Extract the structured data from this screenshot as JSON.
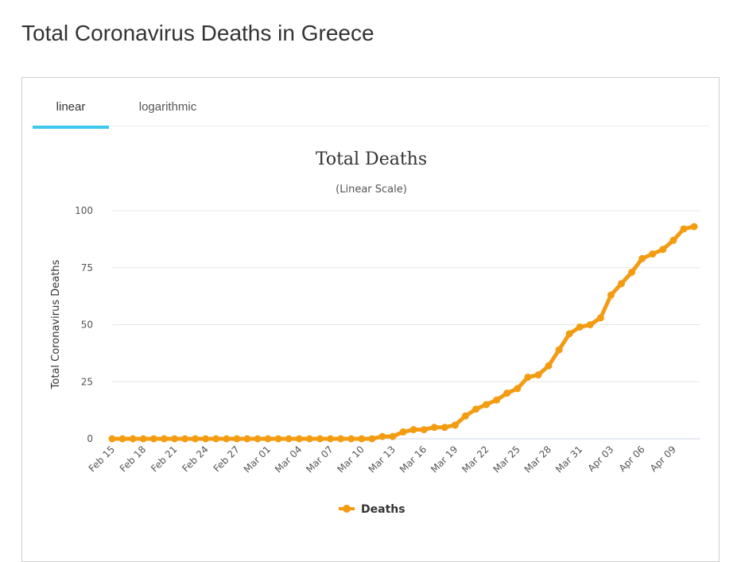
{
  "page": {
    "title": "Total Coronavirus Deaths in Greece"
  },
  "tabs": [
    {
      "label": "linear",
      "active": true
    },
    {
      "label": "logarithmic",
      "active": false
    }
  ],
  "colors": {
    "series": "#f39c12",
    "tab_active": "#3ec8ee",
    "grid": "#e6e6e6"
  },
  "chart_data": {
    "type": "line",
    "title": "Total Deaths",
    "subtitle": "(Linear Scale)",
    "ylabel": "Total Coronavirus Deaths",
    "xlabel": "",
    "ylim": [
      0,
      100
    ],
    "yticks": [
      0,
      25,
      50,
      75,
      100
    ],
    "grid": true,
    "legend": "bottom-center",
    "x_tick_labels": [
      "Feb 15",
      "Feb 18",
      "Feb 21",
      "Feb 24",
      "Feb 27",
      "Mar 01",
      "Mar 04",
      "Mar 07",
      "Mar 10",
      "Mar 13",
      "Mar 16",
      "Mar 19",
      "Mar 22",
      "Mar 25",
      "Mar 28",
      "Mar 31",
      "Apr 03",
      "Apr 06",
      "Apr 09"
    ],
    "x": [
      "Feb 15",
      "Feb 16",
      "Feb 17",
      "Feb 18",
      "Feb 19",
      "Feb 20",
      "Feb 21",
      "Feb 22",
      "Feb 23",
      "Feb 24",
      "Feb 25",
      "Feb 26",
      "Feb 27",
      "Feb 28",
      "Feb 29",
      "Mar 01",
      "Mar 02",
      "Mar 03",
      "Mar 04",
      "Mar 05",
      "Mar 06",
      "Mar 07",
      "Mar 08",
      "Mar 09",
      "Mar 10",
      "Mar 11",
      "Mar 12",
      "Mar 13",
      "Mar 14",
      "Mar 15",
      "Mar 16",
      "Mar 17",
      "Mar 18",
      "Mar 19",
      "Mar 20",
      "Mar 21",
      "Mar 22",
      "Mar 23",
      "Mar 24",
      "Mar 25",
      "Mar 26",
      "Mar 27",
      "Mar 28",
      "Mar 29",
      "Mar 30",
      "Mar 31",
      "Apr 01",
      "Apr 02",
      "Apr 03",
      "Apr 04",
      "Apr 05",
      "Apr 06",
      "Apr 07",
      "Apr 08",
      "Apr 09",
      "Apr 10",
      "Apr 11"
    ],
    "series": [
      {
        "name": "Deaths",
        "values": [
          0,
          0,
          0,
          0,
          0,
          0,
          0,
          0,
          0,
          0,
          0,
          0,
          0,
          0,
          0,
          0,
          0,
          0,
          0,
          0,
          0,
          0,
          0,
          0,
          0,
          0,
          1,
          1,
          3,
          4,
          4,
          5,
          5,
          6,
          10,
          13,
          15,
          17,
          20,
          22,
          27,
          28,
          32,
          39,
          46,
          49,
          50,
          53,
          63,
          68,
          73,
          79,
          81,
          83,
          87,
          92,
          93
        ]
      }
    ]
  }
}
